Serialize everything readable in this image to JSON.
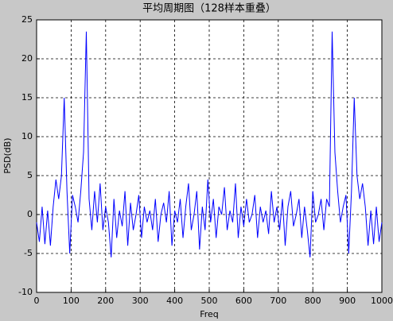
{
  "chart_data": {
    "type": "line",
    "title": "平均周期图（128样本重叠）",
    "x_label": "Freq",
    "y_label": "PSD(dB)",
    "x": [
      0,
      8,
      16,
      24,
      32,
      40,
      48,
      56,
      64,
      72,
      80,
      88,
      96,
      104,
      112,
      120,
      128,
      136,
      144,
      152,
      160,
      168,
      176,
      184,
      192,
      200,
      208,
      216,
      224,
      232,
      240,
      248,
      256,
      264,
      272,
      280,
      288,
      296,
      304,
      312,
      320,
      328,
      336,
      344,
      352,
      360,
      368,
      376,
      384,
      392,
      400,
      408,
      416,
      424,
      432,
      440,
      448,
      456,
      464,
      472,
      480,
      488,
      496,
      504,
      512,
      520,
      528,
      536,
      544,
      552,
      560,
      568,
      576,
      584,
      592,
      600,
      608,
      616,
      624,
      632,
      640,
      648,
      656,
      664,
      672,
      680,
      688,
      696,
      704,
      712,
      720,
      728,
      736,
      744,
      752,
      760,
      768,
      776,
      784,
      792,
      800,
      808,
      816,
      824,
      832,
      840,
      848,
      856,
      864,
      872,
      880,
      888,
      896,
      904,
      912,
      920,
      928,
      936,
      944,
      952,
      960,
      968,
      976,
      984,
      992,
      1000
    ],
    "series": [
      {
        "name": "PSD",
        "color": "#0000ff",
        "values": [
          -1,
          -3.5,
          1,
          -3.8,
          0.5,
          -4,
          1,
          4.5,
          2,
          5,
          15,
          3,
          -5,
          2.5,
          1,
          -1,
          3,
          8,
          23.5,
          2,
          -2,
          3,
          -1,
          4,
          -2,
          1,
          -1,
          -5.5,
          2,
          -3,
          0.5,
          -1.5,
          3,
          -4,
          1.5,
          -2,
          0,
          2.5,
          -3,
          1,
          -1,
          0.5,
          -2,
          2,
          -3.5,
          0,
          1.5,
          -1,
          3,
          -4,
          0.5,
          -1,
          2,
          -3,
          1,
          4,
          -2,
          0,
          3,
          -4.5,
          1,
          -2,
          4.5,
          -1,
          2,
          -3,
          1,
          0,
          3.5,
          -2,
          0.5,
          -1,
          4,
          -3,
          1,
          -1.5,
          2,
          -1,
          0,
          2.5,
          -3,
          1,
          -1,
          0.5,
          -2.5,
          3,
          -1,
          1,
          -2,
          2,
          -4,
          1,
          3,
          -1.5,
          0,
          2,
          -3,
          1,
          -2,
          -5.5,
          3,
          -1,
          0,
          2,
          -2,
          2,
          1,
          23.5,
          8,
          3,
          -1,
          1,
          2.5,
          -5,
          3,
          15,
          5,
          2,
          4,
          1,
          -4,
          0.5,
          -3.8,
          1,
          -3.5,
          -1
        ]
      }
    ],
    "xlim": [
      0,
      1000
    ],
    "ylim": [
      -10,
      25
    ],
    "xticks": [
      0,
      100,
      200,
      300,
      400,
      500,
      600,
      700,
      800,
      900,
      1000
    ],
    "yticks": [
      -10,
      -5,
      0,
      5,
      10,
      15,
      20,
      25
    ],
    "grid": true
  }
}
